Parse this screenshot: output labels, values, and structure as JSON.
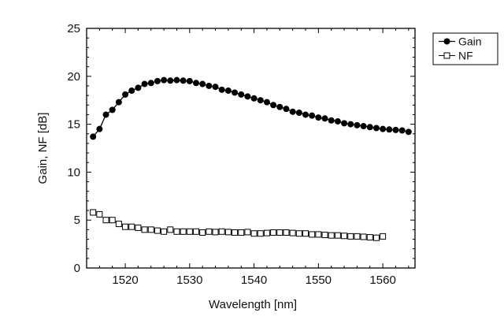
{
  "chart_data": {
    "type": "scatter",
    "xlabel": "Wavelength [nm]",
    "ylabel": "Gain, NF [dB]",
    "xlim": [
      1514,
      1565
    ],
    "ylim": [
      0,
      25
    ],
    "x_ticks": [
      1520,
      1530,
      1540,
      1550,
      1560
    ],
    "y_ticks": [
      0,
      5,
      10,
      15,
      20,
      25
    ],
    "grid": false,
    "legend_position": "top-right outside plot",
    "series": [
      {
        "name": "Gain",
        "marker": "filled-circle",
        "line": true,
        "color": "#000000",
        "x": [
          1515,
          1516,
          1517,
          1518,
          1519,
          1520,
          1521,
          1522,
          1523,
          1524,
          1525,
          1526,
          1527,
          1528,
          1529,
          1530,
          1531,
          1532,
          1533,
          1534,
          1535,
          1536,
          1537,
          1538,
          1539,
          1540,
          1541,
          1542,
          1543,
          1544,
          1545,
          1546,
          1547,
          1548,
          1549,
          1550,
          1551,
          1552,
          1553,
          1554,
          1555,
          1556,
          1557,
          1558,
          1559,
          1560,
          1561,
          1562,
          1563,
          1564
        ],
        "y": [
          13.7,
          14.5,
          16.0,
          16.5,
          17.3,
          18.1,
          18.5,
          18.8,
          19.2,
          19.3,
          19.5,
          19.6,
          19.55,
          19.6,
          19.55,
          19.5,
          19.3,
          19.2,
          19.0,
          18.9,
          18.6,
          18.5,
          18.3,
          18.1,
          17.9,
          17.7,
          17.5,
          17.3,
          17.0,
          16.8,
          16.6,
          16.3,
          16.2,
          16.0,
          15.9,
          15.7,
          15.6,
          15.4,
          15.3,
          15.1,
          15.0,
          14.9,
          14.8,
          14.7,
          14.6,
          14.5,
          14.45,
          14.4,
          14.35,
          14.2
        ]
      },
      {
        "name": "NF",
        "marker": "open-square",
        "line": false,
        "color": "#000000",
        "x": [
          1515,
          1516,
          1517,
          1518,
          1519,
          1520,
          1521,
          1522,
          1523,
          1524,
          1525,
          1526,
          1527,
          1528,
          1529,
          1530,
          1531,
          1532,
          1533,
          1534,
          1535,
          1536,
          1537,
          1538,
          1539,
          1540,
          1541,
          1542,
          1543,
          1544,
          1545,
          1546,
          1547,
          1548,
          1549,
          1550,
          1551,
          1552,
          1553,
          1554,
          1555,
          1556,
          1557,
          1558,
          1559,
          1560
        ],
        "y": [
          5.8,
          5.6,
          5.0,
          5.0,
          4.6,
          4.3,
          4.3,
          4.2,
          4.0,
          4.0,
          3.9,
          3.8,
          4.0,
          3.8,
          3.8,
          3.8,
          3.8,
          3.7,
          3.8,
          3.75,
          3.8,
          3.75,
          3.7,
          3.7,
          3.75,
          3.6,
          3.6,
          3.65,
          3.7,
          3.7,
          3.7,
          3.65,
          3.6,
          3.6,
          3.5,
          3.5,
          3.45,
          3.4,
          3.4,
          3.35,
          3.3,
          3.3,
          3.25,
          3.2,
          3.15,
          3.3
        ]
      }
    ]
  }
}
